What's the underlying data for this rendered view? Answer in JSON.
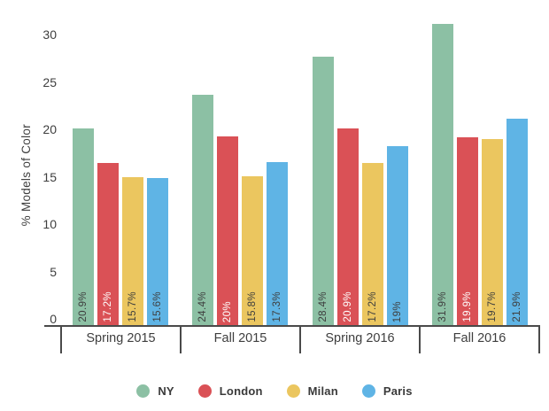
{
  "chart_data": {
    "type": "bar",
    "title": "",
    "xlabel": "",
    "ylabel": "% Models of Color",
    "ylim": [
      0,
      31.9
    ],
    "yticks": [
      0,
      5,
      10,
      15,
      20,
      25,
      30
    ],
    "grid": false,
    "legend_position": "bottom",
    "categories": [
      "Spring 2015",
      "Fall 2015",
      "Spring 2016",
      "Fall 2016"
    ],
    "series": [
      {
        "name": "NY",
        "color": "#8CC0A4",
        "label_color": "#3e3e3e",
        "values": [
          20.9,
          24.4,
          28.4,
          31.9
        ],
        "labels": [
          "20.9%",
          "24.4%",
          "28.4%",
          "31.9%"
        ]
      },
      {
        "name": "London",
        "color": "#DA5156",
        "label_color": "#ffffff",
        "values": [
          17.2,
          20,
          20.9,
          19.9
        ],
        "labels": [
          "17.2%",
          "20%",
          "20.9%",
          "19.9%"
        ]
      },
      {
        "name": "Milan",
        "color": "#EBC65F",
        "label_color": "#3e3e3e",
        "values": [
          15.7,
          15.8,
          17.2,
          19.7
        ],
        "labels": [
          "15.7%",
          "15.8%",
          "17.2%",
          "19.7%"
        ]
      },
      {
        "name": "Paris",
        "color": "#5FB4E5",
        "label_color": "#3e3e3e",
        "values": [
          15.6,
          17.3,
          19,
          21.9
        ],
        "labels": [
          "15.6%",
          "17.3%",
          "19%",
          "21.9%"
        ]
      }
    ],
    "axis_color": "#4a4a4a"
  }
}
